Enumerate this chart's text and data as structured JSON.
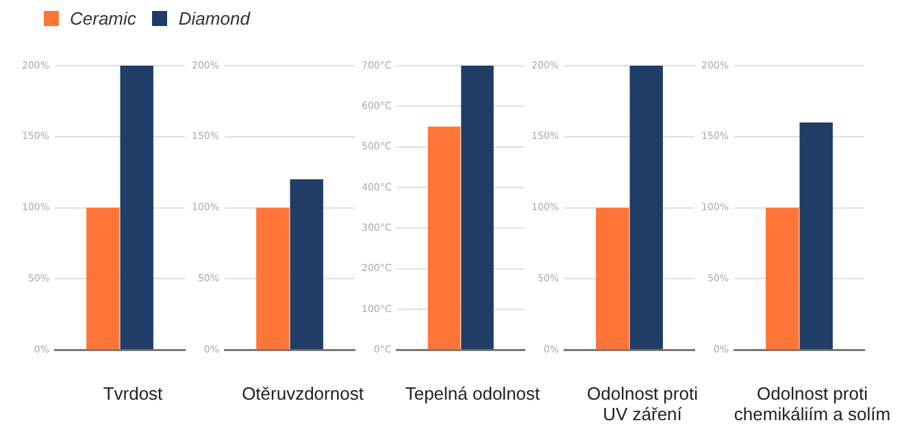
{
  "chart_data": [
    {
      "type": "bar",
      "xlabel": "Tvrdost",
      "categories": [
        null
      ],
      "legend": "top",
      "grid": "y",
      "series": [
        {
          "name": "Ceramic",
          "color": "#ff7538",
          "values": [
            100
          ]
        },
        {
          "name": "Diamond",
          "color": "#1f3d66",
          "values": [
            200
          ]
        }
      ],
      "ylim": [
        0,
        200
      ],
      "yticks": [
        {
          "value": 0,
          "label": "0%"
        },
        {
          "value": 50,
          "label": "50%"
        },
        {
          "value": 100,
          "label": "100%"
        },
        {
          "value": 150,
          "label": "150%"
        },
        {
          "value": 200,
          "label": "200%"
        }
      ]
    },
    {
      "type": "bar",
      "xlabel": "Otěruvzdornost",
      "categories": [
        null
      ],
      "grid": "y",
      "series": [
        {
          "color": "#ff7538",
          "values": [
            100
          ]
        },
        {
          "color": "#1f3d66",
          "values": [
            120
          ]
        }
      ],
      "ylim": [
        0,
        200
      ],
      "yticks": [
        {
          "value": 0,
          "label": "0%"
        },
        {
          "value": 50,
          "label": "50%"
        },
        {
          "value": 100,
          "label": "100%"
        },
        {
          "value": 150,
          "label": "150%"
        },
        {
          "value": 200,
          "label": "200%"
        }
      ]
    },
    {
      "type": "bar",
      "xlabel": "Tepelná odolnost",
      "categories": [
        null
      ],
      "grid": "y",
      "series": [
        {
          "color": "#ff7538",
          "values": [
            550
          ]
        },
        {
          "color": "#1f3d66",
          "values": [
            700
          ]
        }
      ],
      "ylim": [
        0,
        700
      ],
      "yticks": [
        {
          "value": 0,
          "label": "0°C"
        },
        {
          "value": 100,
          "label": "100°C"
        },
        {
          "value": 200,
          "label": "200°C"
        },
        {
          "value": 300,
          "label": "300°C"
        },
        {
          "value": 400,
          "label": "400°C"
        },
        {
          "value": 500,
          "label": "500°C"
        },
        {
          "value": 600,
          "label": "600°C"
        },
        {
          "value": 700,
          "label": "700°C"
        }
      ]
    },
    {
      "type": "bar",
      "xlabel": "Odolnost proti\nUV záření",
      "categories": [
        null
      ],
      "grid": "y",
      "series": [
        {
          "color": "#ff7538",
          "values": [
            100
          ]
        },
        {
          "color": "#1f3d66",
          "values": [
            200
          ]
        }
      ],
      "ylim": [
        0,
        200
      ],
      "yticks": [
        {
          "value": 0,
          "label": "0%"
        },
        {
          "value": 50,
          "label": "50%"
        },
        {
          "value": 100,
          "label": "100%"
        },
        {
          "value": 150,
          "label": "150%"
        },
        {
          "value": 200,
          "label": "200%"
        }
      ]
    },
    {
      "type": "bar",
      "xlabel": "Odolnost proti\nchemikáliím a solím",
      "categories": [
        null
      ],
      "grid": "y",
      "series": [
        {
          "color": "#ff7538",
          "values": [
            100
          ]
        },
        {
          "color": "#1f3d66",
          "values": [
            160
          ]
        }
      ],
      "ylim": [
        0,
        200
      ],
      "yticks": [
        {
          "value": 0,
          "label": "0%"
        },
        {
          "value": 50,
          "label": "50%"
        },
        {
          "value": 100,
          "label": "100%"
        },
        {
          "value": 150,
          "label": "150%"
        },
        {
          "value": 200,
          "label": "200%"
        }
      ]
    }
  ]
}
